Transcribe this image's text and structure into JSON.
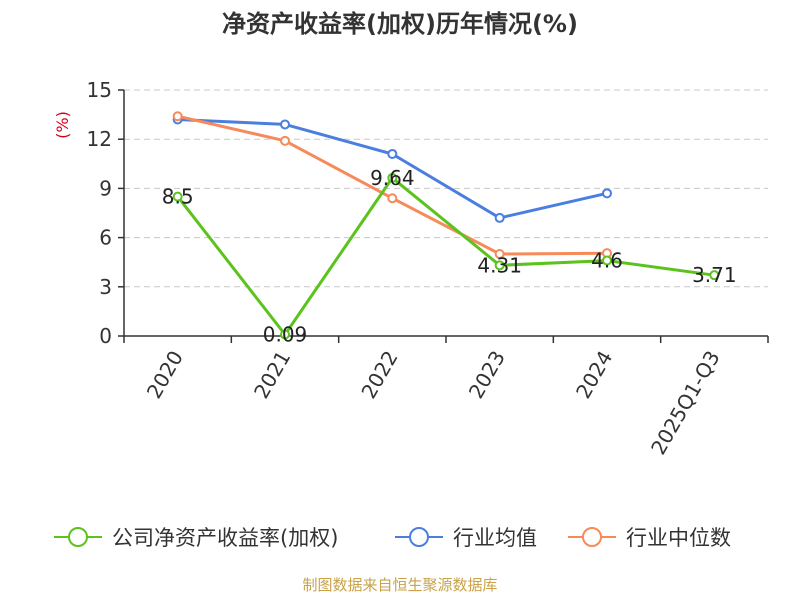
{
  "chart_data": {
    "type": "line",
    "title": "净资产收益率(加权)历年情况(%)",
    "ylabel": "(%)",
    "ylim": [
      0,
      15
    ],
    "yticks": [
      0,
      3,
      6,
      9,
      12,
      15
    ],
    "ytick_labels": [
      "0",
      "3",
      "6",
      "9",
      "12",
      "15"
    ],
    "categories": [
      "2020",
      "2021",
      "2022",
      "2023",
      "2024",
      "2025Q1-Q3"
    ],
    "grid": "horizontal-dashed",
    "legend_position": "bottom",
    "series": [
      {
        "name": "公司净资产收益率(加权)",
        "color": "#5cc21e",
        "values": [
          8.5,
          0.09,
          9.64,
          4.31,
          4.6,
          3.71
        ],
        "data_labels": [
          "8.5",
          "0.09",
          "9.64",
          "4.31",
          "4.6",
          "3.71"
        ]
      },
      {
        "name": "行业均值",
        "color": "#4a7fe0",
        "values": [
          13.2,
          12.9,
          11.1,
          7.2,
          8.7,
          null
        ]
      },
      {
        "name": "行业中位数",
        "color": "#f68a5b",
        "values": [
          13.4,
          11.9,
          8.4,
          5.0,
          5.05,
          null
        ]
      }
    ],
    "ylabel_color": "#d0021b",
    "source_text": "制图数据来自恒生聚源数据库",
    "source_color": "#c9a24a"
  }
}
